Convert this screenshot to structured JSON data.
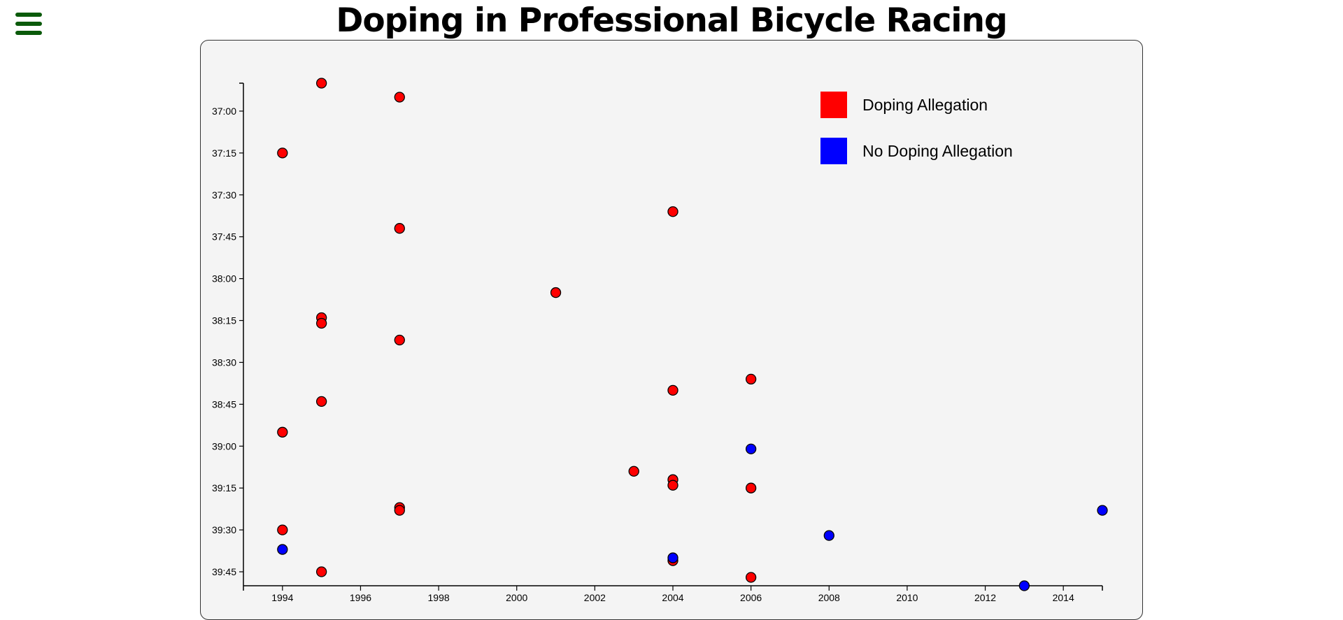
{
  "page": {
    "title": "Doping in Professional Bicycle Racing"
  },
  "menu": {
    "icon": "hamburger-menu-icon",
    "color": "#0b5a0b"
  },
  "colors": {
    "doping": "#ff0000",
    "no_doping": "#0000ff",
    "card_bg": "#f4f4f4"
  },
  "legend": [
    {
      "label": "Doping Allegation",
      "color": "#ff0000"
    },
    {
      "label": "No Doping Allegation",
      "color": "#0000ff"
    }
  ],
  "chart_data": {
    "type": "scatter",
    "title": "",
    "xlabel": "",
    "ylabel": "",
    "xlim": [
      1993,
      2015
    ],
    "ylim": [
      "36:50",
      "39:50"
    ],
    "x_ticks": [
      1994,
      1996,
      1998,
      2000,
      2002,
      2004,
      2006,
      2008,
      2010,
      2012,
      2014
    ],
    "y_ticks": [
      "37:00",
      "37:15",
      "37:30",
      "37:45",
      "38:00",
      "38:15",
      "38:30",
      "38:45",
      "39:00",
      "39:15",
      "39:30",
      "39:45"
    ],
    "legend_position": "top-right",
    "series": [
      {
        "name": "Doping Allegation",
        "color": "#ff0000",
        "points": [
          {
            "x": 1995,
            "y": "36:50"
          },
          {
            "x": 1997,
            "y": "36:55"
          },
          {
            "x": 1994,
            "y": "37:15"
          },
          {
            "x": 2004,
            "y": "37:36"
          },
          {
            "x": 1997,
            "y": "37:42"
          },
          {
            "x": 2001,
            "y": "38:05"
          },
          {
            "x": 1995,
            "y": "38:14"
          },
          {
            "x": 1995,
            "y": "38:16"
          },
          {
            "x": 1997,
            "y": "38:22"
          },
          {
            "x": 2006,
            "y": "38:36"
          },
          {
            "x": 2004,
            "y": "38:40"
          },
          {
            "x": 1995,
            "y": "38:44"
          },
          {
            "x": 1994,
            "y": "38:55"
          },
          {
            "x": 2003,
            "y": "39:09"
          },
          {
            "x": 2004,
            "y": "39:12"
          },
          {
            "x": 2004,
            "y": "39:14"
          },
          {
            "x": 2006,
            "y": "39:15"
          },
          {
            "x": 1997,
            "y": "39:22"
          },
          {
            "x": 1997,
            "y": "39:23"
          },
          {
            "x": 1994,
            "y": "39:30"
          },
          {
            "x": 2004,
            "y": "39:41"
          },
          {
            "x": 1995,
            "y": "39:45"
          },
          {
            "x": 2006,
            "y": "39:47"
          }
        ]
      },
      {
        "name": "No Doping Allegation",
        "color": "#0000ff",
        "points": [
          {
            "x": 2006,
            "y": "39:01"
          },
          {
            "x": 2015,
            "y": "39:23"
          },
          {
            "x": 2008,
            "y": "39:32"
          },
          {
            "x": 1994,
            "y": "39:37"
          },
          {
            "x": 2004,
            "y": "39:40"
          },
          {
            "x": 2013,
            "y": "39:50"
          }
        ]
      }
    ]
  }
}
